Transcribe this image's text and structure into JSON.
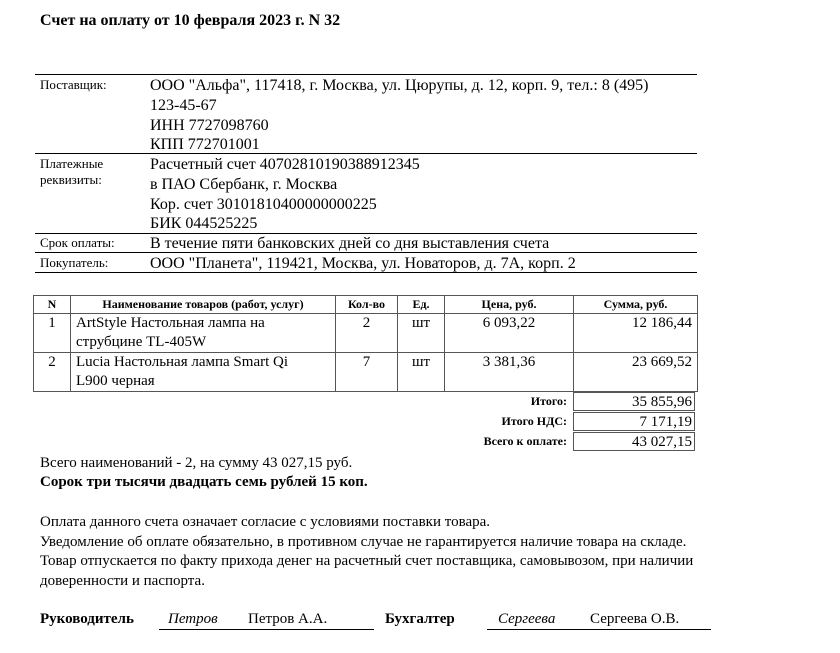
{
  "title": "Счет на оплату от 10 февраля 2023 г. N 32",
  "supplier": {
    "label": "Поставщик:",
    "lines": [
      "ООО \"Альфа\", 117418, г. Москва, ул. Цюрупы, д. 12, корп. 9, тел.: 8 (495)",
      "123-45-67",
      "ИНН 7727098760",
      "КПП 772701001"
    ]
  },
  "bank": {
    "label1": "Платежные",
    "label2": "реквизиты:",
    "lines": [
      "Расчетный счет 40702810190388912345",
      "в ПАО Сбербанк, г. Москва",
      "Кор. счет 30101810400000000225",
      "БИК 044525225"
    ]
  },
  "due": {
    "label": "Срок оплаты:",
    "value": "В течение пяти банковских дней со дня выставления счета"
  },
  "buyer": {
    "label": "Покупатель:",
    "value": "ООО \"Планета\", 119421, Москва, ул. Новаторов, д. 7А, корп. 2"
  },
  "table": {
    "headers": [
      "N",
      "Наименование товаров (работ, услуг)",
      "Кол-во",
      "Ед.",
      "Цена, руб.",
      "Сумма, руб."
    ],
    "rows": [
      {
        "n": "1",
        "name1": "ArtStyle Настольная лампа на",
        "name2": "струбцине TL-405W",
        "qty": "2",
        "unit": "шт",
        "price": "6 093,22",
        "sum": "12 186,44"
      },
      {
        "n": "2",
        "name1": "Lucia Настольная лампа Smart Qi",
        "name2": "L900 черная",
        "qty": "7",
        "unit": "шт",
        "price": "3 381,36",
        "sum": "23 669,52"
      }
    ]
  },
  "totals": {
    "subtotal_label": "Итого:",
    "subtotal": "35 855,96",
    "vat_label": "Итого НДС:",
    "vat": "7 171,19",
    "total_label": "Всего к оплате:",
    "total": "43 027,15"
  },
  "summary": "Всего наименований - 2, на сумму 43 027,15 руб.",
  "in_words": "Сорок три тысячи двадцать семь рублей 15 коп.",
  "notes": [
    "Оплата данного счета означает согласие с условиями поставки товара.",
    "Уведомление об оплате обязательно, в противном случае не гарантируется наличие товара на складе.",
    "Товар отпускается по факту прихода денег на расчетный счет поставщика, самовывозом, при наличии",
    "доверенности и паспорта."
  ],
  "signatures": {
    "head_label": "Руководитель",
    "head_sign": "Петров",
    "head_name": "Петров А.А.",
    "acc_label": "Бухгалтер",
    "acc_sign": "Сергеева",
    "acc_name": "Сергеева О.В."
  }
}
